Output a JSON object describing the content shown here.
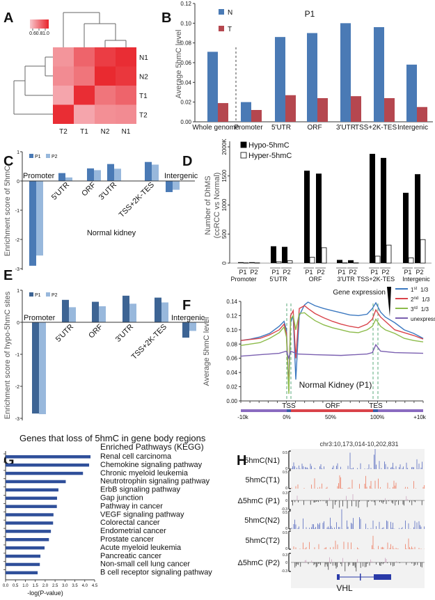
{
  "panel_labels": [
    "A",
    "B",
    "C",
    "D",
    "E",
    "F",
    "G",
    "H"
  ],
  "colors": {
    "N": "#4a7ab5",
    "T": "#b5474f",
    "P1": "#4a7ab5",
    "P2": "#98b8dc",
    "P1_dark": "#3d6494",
    "heat_low": "#f8c6cc",
    "heat_high": "#e8232a",
    "hypo": "#000000",
    "hyper": "#ffffff",
    "track_N": "#3f56b8",
    "track_T": "#ee6a4a",
    "delta_pos": "#c89ab8",
    "delta_neg": "#222222",
    "gene": "#2a3aa8"
  },
  "chart_data": [
    {
      "panel": "A",
      "type": "heatmap",
      "rows": [
        "N1",
        "N2",
        "T1",
        "T2"
      ],
      "columns": [
        "T2",
        "T1",
        "N2",
        "N1"
      ],
      "values": [
        [
          0.65,
          0.8,
          0.92,
          0.97
        ],
        [
          0.68,
          0.75,
          0.98,
          0.94
        ],
        [
          0.6,
          0.97,
          0.75,
          0.8
        ],
        [
          0.97,
          0.6,
          0.67,
          0.68
        ]
      ],
      "color_range": [
        0.5,
        1.0
      ],
      "legend_ticks": [
        "0.6",
        "0.8",
        "1.0"
      ],
      "dendrogram": "rows and columns clustered"
    },
    {
      "panel": "B",
      "type": "bar",
      "title": "P1",
      "ylabel": "Average 5hmC level",
      "ylim": [
        0,
        0.12
      ],
      "yticks": [
        "0.00",
        "0.02",
        "0.04",
        "0.06",
        "0.08",
        "0.10",
        "0.12"
      ],
      "categories": [
        "Whole genome",
        "Promoter",
        "5'UTR",
        "ORF",
        "3'UTR",
        "TSS+2K-TES",
        "Intergenic"
      ],
      "series": [
        {
          "name": "N",
          "values": [
            0.071,
            0.02,
            0.086,
            0.09,
            0.1,
            0.096,
            0.058
          ]
        },
        {
          "name": "T",
          "values": [
            0.019,
            0.012,
            0.027,
            0.024,
            0.026,
            0.024,
            0.015
          ]
        }
      ],
      "legend": "top-left"
    },
    {
      "panel": "C",
      "type": "bar",
      "ylabel": "Enrichment score of 5hmC",
      "ylim": [
        -3,
        1
      ],
      "yticks": [
        "1",
        "0",
        "-1",
        "-2",
        "-3"
      ],
      "annotation": "Normal kidney",
      "categories": [
        "Promoter",
        "5'UTR",
        "ORF",
        "3'UTR",
        "TSS+2K-TES",
        "Intergenic"
      ],
      "series": [
        {
          "name": "P1",
          "values": [
            -2.9,
            0.27,
            0.43,
            0.58,
            0.65,
            -0.38
          ]
        },
        {
          "name": "P2",
          "values": [
            -2.55,
            0.12,
            0.37,
            0.42,
            0.56,
            -0.3
          ]
        }
      ],
      "legend": "top-left"
    },
    {
      "panel": "D",
      "type": "bar",
      "ylabel": "Number of DhMS",
      "ylabel2": "(ccRCC vs Normal)",
      "ylim": [
        0,
        2000
      ],
      "yticks": [
        "0",
        "500",
        "1000",
        "1500",
        "2000K"
      ],
      "categories": [
        "Promoter",
        "5'UTR",
        "ORF",
        "3'UTR",
        "TSS+2K-TES",
        "Intergenic"
      ],
      "samples": [
        "P1",
        "P2"
      ],
      "series": [
        {
          "name": "Hypo-5hmC",
          "values": [
            [
              15,
              15
            ],
            [
              290,
              280
            ],
            [
              1590,
              1540
            ],
            [
              55,
              50
            ],
            [
              1880,
              1810
            ],
            [
              1210,
              1530
            ]
          ]
        },
        {
          "name": "Hyper-5hmC",
          "values": [
            [
              5,
              5
            ],
            [
              25,
              40
            ],
            [
              100,
              265
            ],
            [
              5,
              5
            ],
            [
              120,
              310
            ],
            [
              90,
              405
            ]
          ]
        }
      ],
      "legend": "top-left"
    },
    {
      "panel": "E",
      "type": "bar",
      "ylabel": "Enrichment score of hypo-5hmC sites",
      "ylim": [
        -3,
        1
      ],
      "yticks": [
        "1",
        "0",
        "-1",
        "-2",
        "-3"
      ],
      "categories": [
        "Promoter",
        "5'UTR",
        "ORF",
        "3'UTR",
        "TSS+2K-TES",
        "Intergenic"
      ],
      "series": [
        {
          "name": "P1",
          "values": [
            -2.85,
            0.7,
            0.64,
            0.83,
            0.77,
            -0.48
          ]
        },
        {
          "name": "P2",
          "values": [
            -2.87,
            0.47,
            0.5,
            0.58,
            0.62,
            -0.27
          ]
        }
      ],
      "legend": "top-left"
    },
    {
      "panel": "F",
      "type": "line",
      "ylabel": "Average 5hmC level",
      "ylim": [
        0,
        0.14
      ],
      "yticks": [
        "0.00",
        "0.02",
        "0.04",
        "0.06",
        "0.08",
        "0.10",
        "0.12",
        "0.14"
      ],
      "xticks": [
        "-10k",
        "0%",
        "50%",
        "100%",
        "+10k"
      ],
      "regions": [
        "TSS",
        "ORF",
        "TES"
      ],
      "annotation": "Normal Kidney (P1)",
      "legend_title": "Gene expression",
      "legend": "top-right",
      "series": [
        {
          "name": "1st 1/3",
          "sup": "st",
          "base": "1",
          "frac": "1/3",
          "color": "#3b78c0",
          "upstream_kb": [
            [
              -10,
              0.085
            ],
            [
              -8,
              0.087
            ],
            [
              -6,
              0.09
            ],
            [
              -4,
              0.095
            ],
            [
              -2,
              0.105
            ],
            [
              -1,
              0.112
            ],
            [
              -0.5,
              0.1
            ],
            [
              0,
              0.02
            ]
          ],
          "body_pct": [
            [
              2,
              0.11
            ],
            [
              5,
              0.12
            ],
            [
              8,
              0.03
            ],
            [
              12,
              0.12
            ],
            [
              18,
              0.135
            ],
            [
              22,
              0.139
            ],
            [
              30,
              0.134
            ],
            [
              40,
              0.13
            ],
            [
              50,
              0.127
            ],
            [
              60,
              0.124
            ],
            [
              70,
              0.121
            ],
            [
              80,
              0.12
            ],
            [
              90,
              0.122
            ],
            [
              96,
              0.13
            ],
            [
              100,
              0.138
            ]
          ],
          "downstream_kb": [
            [
              1,
              0.125
            ],
            [
              2,
              0.118
            ],
            [
              4,
              0.11
            ],
            [
              6,
              0.1
            ],
            [
              8,
              0.095
            ],
            [
              10,
              0.088
            ]
          ]
        },
        {
          "name": "2nd 1/3",
          "sup": "nd",
          "base": "2",
          "frac": "1/3",
          "color": "#d9434a",
          "upstream_kb": [
            [
              -10,
              0.085
            ],
            [
              -6,
              0.088
            ],
            [
              -4,
              0.093
            ],
            [
              -2,
              0.1
            ],
            [
              -1,
              0.108
            ],
            [
              -0.5,
              0.095
            ],
            [
              0,
              0.015
            ]
          ],
          "body_pct": [
            [
              2,
              0.12
            ],
            [
              5,
              0.127
            ],
            [
              8,
              0.06
            ],
            [
              12,
              0.13
            ],
            [
              18,
              0.134
            ],
            [
              22,
              0.13
            ],
            [
              30,
              0.123
            ],
            [
              40,
              0.117
            ],
            [
              50,
              0.112
            ],
            [
              60,
              0.108
            ],
            [
              70,
              0.105
            ],
            [
              80,
              0.103
            ],
            [
              90,
              0.108
            ],
            [
              96,
              0.115
            ],
            [
              100,
              0.128
            ]
          ],
          "downstream_kb": [
            [
              1,
              0.118
            ],
            [
              2,
              0.112
            ],
            [
              4,
              0.1
            ],
            [
              6,
              0.096
            ],
            [
              8,
              0.092
            ],
            [
              10,
              0.087
            ]
          ]
        },
        {
          "name": "3rd 1/3",
          "sup": "rd",
          "base": "3",
          "frac": "1/3",
          "color": "#8cbb4a",
          "upstream_kb": [
            [
              -10,
              0.078
            ],
            [
              -6,
              0.082
            ],
            [
              -4,
              0.088
            ],
            [
              -2,
              0.096
            ],
            [
              -1,
              0.104
            ],
            [
              -0.5,
              0.09
            ],
            [
              0,
              0.01
            ]
          ],
          "body_pct": [
            [
              2,
              0.115
            ],
            [
              5,
              0.12
            ],
            [
              8,
              0.1
            ],
            [
              12,
              0.123
            ],
            [
              18,
              0.124
            ],
            [
              22,
              0.12
            ],
            [
              30,
              0.113
            ],
            [
              40,
              0.107
            ],
            [
              50,
              0.103
            ],
            [
              60,
              0.1
            ],
            [
              70,
              0.097
            ],
            [
              80,
              0.096
            ],
            [
              90,
              0.1
            ],
            [
              96,
              0.105
            ],
            [
              100,
              0.115
            ]
          ],
          "downstream_kb": [
            [
              1,
              0.105
            ],
            [
              2,
              0.1
            ],
            [
              4,
              0.095
            ],
            [
              6,
              0.088
            ],
            [
              8,
              0.085
            ],
            [
              10,
              0.083
            ]
          ]
        },
        {
          "name": "unexpressed",
          "sup": "",
          "base": "unexpressed",
          "frac": "",
          "color": "#7a5fb0",
          "upstream_kb": [
            [
              -10,
              0.063
            ],
            [
              -6,
              0.065
            ],
            [
              -2,
              0.067
            ],
            [
              -0.5,
              0.07
            ],
            [
              0,
              0.06
            ]
          ],
          "body_pct": [
            [
              2,
              0.07
            ],
            [
              10,
              0.066
            ],
            [
              30,
              0.065
            ],
            [
              60,
              0.064
            ],
            [
              90,
              0.066
            ],
            [
              96,
              0.068
            ],
            [
              100,
              0.079
            ]
          ],
          "downstream_kb": [
            [
              1,
              0.07
            ],
            [
              4,
              0.068
            ],
            [
              10,
              0.067
            ]
          ]
        }
      ]
    },
    {
      "panel": "G",
      "type": "bar",
      "orientation": "horizontal",
      "title": "Genes that loss of 5hmC in gene body regions",
      "subtitle": "Enriched Pathways (KEGG)",
      "xlabel": "-log(P-value)",
      "xlim": [
        0,
        4.5
      ],
      "xticks": [
        "0.0",
        "0.5",
        "1.0",
        "1.5",
        "2.0",
        "2.5",
        "3.0",
        "3.5",
        "4.0",
        "4.5"
      ],
      "categories": [
        "Renal cell carcinoma",
        "Chemokine signaling pathway",
        "Chronic myeloid leukemia",
        "Neutrotrophin signaling pathway",
        "ErbB signaling pathway",
        "Gap junction",
        "Pathway in cancer",
        "VEGF signaling pathway",
        "Colorectal cancer",
        "Endometrial cancer",
        "Prostate cancer",
        "Acute myeloid leukemia",
        "Pancreatic cancer",
        "Non-small cell lung cancer",
        "B cell receptor signaling pathway"
      ],
      "values": [
        4.29,
        4.22,
        3.91,
        3.04,
        2.67,
        2.6,
        2.59,
        2.42,
        2.4,
        2.29,
        2.19,
        1.97,
        1.76,
        1.73,
        1.62
      ],
      "color": "#2f4f9a"
    },
    {
      "panel": "H",
      "type": "genome-tracks",
      "region": "chr3:10,173,014-10,202,831",
      "gene": "VHL",
      "tracks": [
        {
          "label": "5hmC(N1)",
          "kind": "N",
          "ymax": "0.5",
          "ymin": "0"
        },
        {
          "label": "5hmC(T1)",
          "kind": "T",
          "ymax": "0.5",
          "ymin": "0"
        },
        {
          "label": "Δ5hmC (P1)",
          "kind": "delta",
          "ymax": "0.3",
          "ymid": "0",
          "ymin": "-0.3"
        },
        {
          "label": "5hmC(N2)",
          "kind": "N",
          "ymax": "0.5",
          "ymin": "0"
        },
        {
          "label": "5hmC(T2)",
          "kind": "T",
          "ymax": "0.5",
          "ymin": "0"
        },
        {
          "label": "Δ5hmC (P2)",
          "kind": "delta",
          "ymax": "0.3",
          "ymid": "0",
          "ymin": "-0.3"
        }
      ]
    }
  ]
}
